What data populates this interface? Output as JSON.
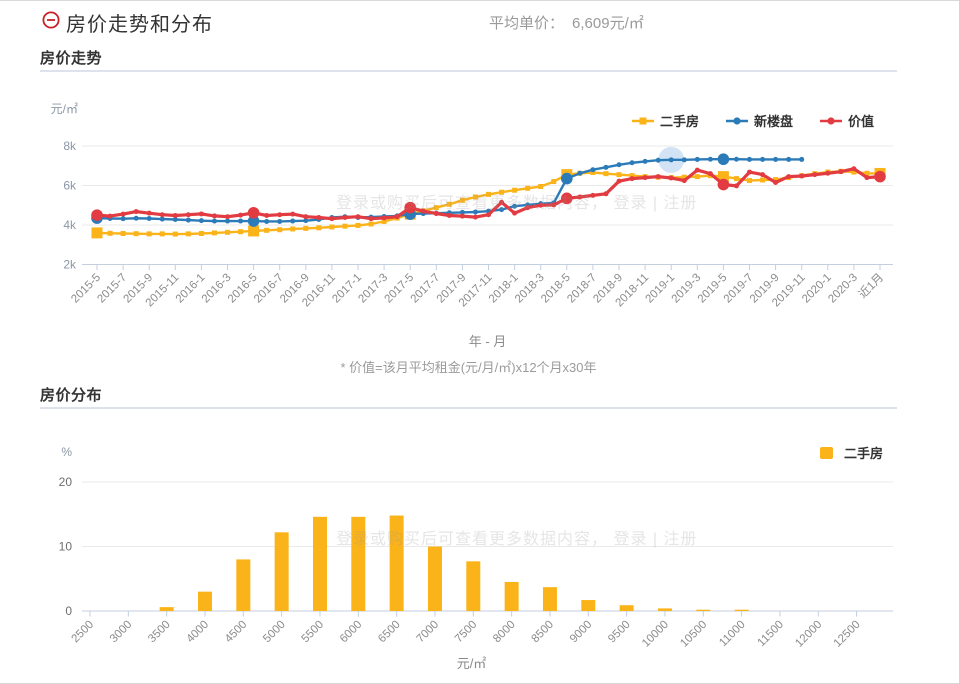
{
  "header": {
    "title": "房价走势和分布",
    "collapse_icon": "minus-circle-icon",
    "avg_label": "平均单价：",
    "avg_value": "6,609",
    "avg_unit": "元/㎡"
  },
  "sections": {
    "trend": {
      "title": "房价走势"
    },
    "dist": {
      "title": "房价分布"
    }
  },
  "footnote": "* 价值=该月平均租金(元/月/㎡)x12个月x30年",
  "watermark": "登录或购买后可查看更多数据内容， 登录 | 注册",
  "colors": {
    "secondhand": "#FBB31A",
    "newbuild": "#2C7BB9",
    "value": "#E23B41",
    "grid": "#EAEAEA",
    "axis": "#C3CEDF",
    "x_label": "#8B8B8B",
    "y_label": "#8C97A5",
    "highlight_halo": "#4A90D9"
  },
  "chart_data": [
    {
      "type": "line",
      "title": "房价走势",
      "y_unit": "元/㎡",
      "x_title": "年 - 月",
      "ylim": [
        2000,
        8000
      ],
      "y_tick_values": [
        2000,
        4000,
        6000,
        8000
      ],
      "y_tick_labels": [
        "2k",
        "4k",
        "6k",
        "8k"
      ],
      "grid": true,
      "legend_position": "top-right",
      "x_labels": [
        "2015-5",
        "2015-7",
        "2015-9",
        "2015-11",
        "2016-1",
        "2016-3",
        "2016-5",
        "2016-7",
        "2016-9",
        "2016-11",
        "2017-1",
        "2017-3",
        "2017-5",
        "2017-7",
        "2017-9",
        "2017-11",
        "2018-1",
        "2018-3",
        "2018-5",
        "2018-7",
        "2018-9",
        "2018-11",
        "2019-1",
        "2019-3",
        "2019-5",
        "2019-7",
        "2019-9",
        "2019-11",
        "2020-1",
        "2020-3",
        "近1月"
      ],
      "points_per_label": 2,
      "emphasis_indices": [
        0,
        12,
        24,
        36,
        48,
        60
      ],
      "highlight": {
        "series_index": 1,
        "point_index": 44
      },
      "series": [
        {
          "name": "二手房",
          "color": "#FBB31A",
          "marker": "square",
          "line_width": 2.4,
          "values": [
            3600,
            3580,
            3570,
            3560,
            3550,
            3550,
            3540,
            3550,
            3570,
            3600,
            3630,
            3660,
            3700,
            3730,
            3760,
            3800,
            3830,
            3860,
            3900,
            3940,
            3980,
            4050,
            4180,
            4350,
            4550,
            4720,
            4880,
            5050,
            5250,
            5420,
            5550,
            5660,
            5760,
            5860,
            5950,
            6200,
            6550,
            6620,
            6660,
            6600,
            6550,
            6500,
            6450,
            6420,
            6400,
            6420,
            6450,
            6500,
            6450,
            6350,
            6250,
            6280,
            6300,
            6400,
            6500,
            6600,
            6680,
            6720,
            6680,
            6620,
            6610
          ]
        },
        {
          "name": "新楼盘",
          "color": "#2C7BB9",
          "marker": "circle",
          "line_width": 2.4,
          "values": [
            4350,
            4330,
            4320,
            4340,
            4330,
            4300,
            4280,
            4250,
            4220,
            4200,
            4200,
            4200,
            4200,
            4180,
            4180,
            4200,
            4220,
            4280,
            4380,
            4420,
            4380,
            4400,
            4430,
            4460,
            4550,
            4580,
            4600,
            4620,
            4640,
            4660,
            4700,
            4780,
            4950,
            5020,
            5080,
            5120,
            6350,
            6620,
            6800,
            6920,
            7050,
            7150,
            7220,
            7280,
            7300,
            7300,
            7320,
            7330,
            7330,
            7330,
            7320,
            7320,
            7320,
            7320,
            7320,
            null,
            null,
            null,
            null,
            null,
            null
          ]
        },
        {
          "name": "价值",
          "color": "#E23B41",
          "marker": "circle",
          "line_width": 3.2,
          "values": [
            4500,
            4450,
            4550,
            4680,
            4600,
            4520,
            4480,
            4520,
            4560,
            4460,
            4420,
            4500,
            4620,
            4480,
            4520,
            4550,
            4420,
            4380,
            4320,
            4380,
            4420,
            4320,
            4360,
            4420,
            4880,
            4700,
            4580,
            4480,
            4450,
            4400,
            4520,
            5150,
            4600,
            4880,
            5000,
            5020,
            5350,
            5420,
            5500,
            5580,
            6220,
            6350,
            6400,
            6450,
            6380,
            6250,
            6780,
            6600,
            6050,
            5980,
            6680,
            6550,
            6150,
            6450,
            6480,
            6550,
            6620,
            6700,
            6850,
            6400,
            6450
          ]
        }
      ]
    },
    {
      "type": "bar",
      "title": "房价分布",
      "y_unit": "%",
      "x_title": "元/㎡",
      "ylim": [
        0,
        20
      ],
      "y_tick_values": [
        0,
        10,
        20
      ],
      "y_tick_labels": [
        "0",
        "10",
        "20"
      ],
      "grid": true,
      "legend_position": "top-right",
      "categories": [
        "2500",
        "3000",
        "3500",
        "4000",
        "4500",
        "5000",
        "5500",
        "6000",
        "6500",
        "7000",
        "7500",
        "8000",
        "8500",
        "9000",
        "9500",
        "10000",
        "10500",
        "11000",
        "11500",
        "12000",
        "12500"
      ],
      "series": [
        {
          "name": "二手房",
          "color": "#FBB31A",
          "values": [
            0,
            0,
            0.6,
            3,
            8,
            12.2,
            14.6,
            14.6,
            14.8,
            10,
            7.7,
            4.5,
            3.7,
            1.7,
            0.9,
            0.4,
            0.2,
            0.2,
            0,
            0,
            0
          ]
        }
      ]
    }
  ]
}
